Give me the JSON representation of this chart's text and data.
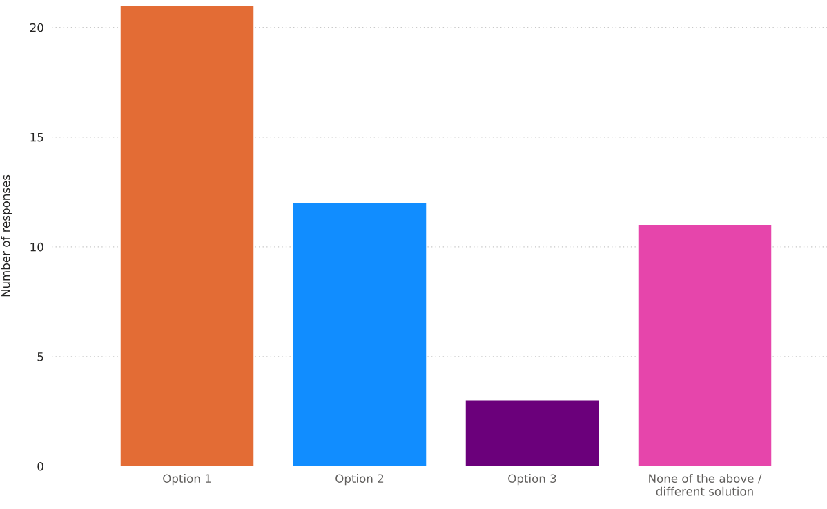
{
  "chart_data": {
    "type": "bar",
    "ylabel": "Number of responses",
    "categories": [
      "Option 1",
      "Option 2",
      "Option 3",
      "None of the above /\ndifferent solution"
    ],
    "values": [
      21,
      12,
      3,
      11
    ],
    "colors": [
      "#e36c35",
      "#118dff",
      "#6b007b",
      "#e645ab"
    ],
    "ylim": [
      0,
      21
    ],
    "yticks": [
      0,
      5,
      10,
      15,
      20
    ],
    "grid": "y",
    "legend": false
  }
}
